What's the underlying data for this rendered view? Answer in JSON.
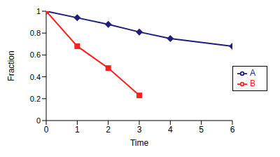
{
  "chart_data": {
    "type": "line",
    "x_label": "Time",
    "y_label": "Fraction",
    "x": [
      0,
      1,
      2,
      3,
      4,
      6
    ],
    "series": [
      {
        "name": "A",
        "color": "#1f1f7a",
        "marker": "diamond",
        "values": [
          1.0,
          0.94,
          0.88,
          0.81,
          0.75,
          0.68
        ]
      },
      {
        "name": "B",
        "color": "#ff2020",
        "marker": "square",
        "values": [
          1.0,
          0.68,
          0.48,
          0.23,
          null,
          null
        ]
      }
    ],
    "xlim": [
      0,
      6
    ],
    "xticks": [
      0,
      1,
      2,
      3,
      4,
      5,
      6
    ],
    "ylim": [
      0,
      1
    ],
    "yticks": [
      0,
      0.2,
      0.4,
      0.6,
      0.8,
      1
    ],
    "grid": false,
    "legend": "right"
  }
}
